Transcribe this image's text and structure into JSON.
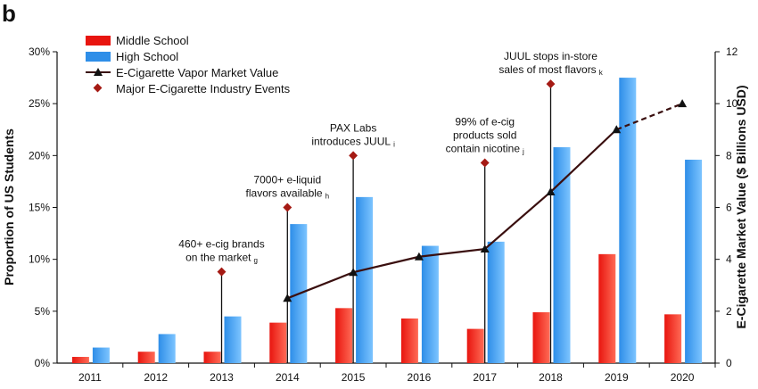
{
  "panel_label": "b",
  "chart_data": {
    "type": "bar",
    "categories": [
      "2011",
      "2012",
      "2013",
      "2014",
      "2015",
      "2016",
      "2017",
      "2018",
      "2019",
      "2020"
    ],
    "series": [
      {
        "name": "Middle School",
        "kind": "bar",
        "axis": "left",
        "values": [
          0.6,
          1.1,
          1.1,
          3.9,
          5.3,
          4.3,
          3.3,
          4.9,
          10.5,
          4.7
        ]
      },
      {
        "name": "High School",
        "kind": "bar",
        "axis": "left",
        "values": [
          1.5,
          2.8,
          4.5,
          13.4,
          16.0,
          11.3,
          11.7,
          20.8,
          27.5,
          19.6
        ]
      },
      {
        "name": "E-Cigarette Vapor Market Value",
        "kind": "line",
        "axis": "right",
        "x": [
          "2014",
          "2015",
          "2016",
          "2017",
          "2018",
          "2019",
          "2020"
        ],
        "values": [
          2.5,
          3.5,
          4.1,
          4.4,
          6.6,
          9.0,
          10.0
        ],
        "projected_from": "2019"
      },
      {
        "name": "Major E-Cigarette Industry Events",
        "kind": "event-marker",
        "axis": "left",
        "x": [
          "2013",
          "2014",
          "2015",
          "2017",
          "2018"
        ],
        "values": [
          8.8,
          15.0,
          20.0,
          19.3,
          26.9
        ]
      }
    ],
    "left_axis": {
      "label": "Proportion of US Students",
      "ylim": [
        0,
        30
      ],
      "ticks": [
        "0%",
        "5%",
        "10%",
        "15%",
        "20%",
        "25%",
        "30%"
      ]
    },
    "right_axis": {
      "label": "E-Cigarette Market Value ($ Billions USD)",
      "ylim": [
        0,
        12
      ],
      "ticks": [
        "0",
        "2",
        "4",
        "6",
        "8",
        "10",
        "12"
      ]
    },
    "events": [
      {
        "year": "2013",
        "lines": [
          "460+ e-cig brands",
          "on the market"
        ],
        "ref": "g"
      },
      {
        "year": "2014",
        "lines": [
          "7000+ e-liquid",
          "flavors available"
        ],
        "ref": "h"
      },
      {
        "year": "2015",
        "lines": [
          "PAX Labs",
          "introduces JUUL"
        ],
        "ref": "i"
      },
      {
        "year": "2017",
        "lines": [
          "99% of e-cig",
          "products sold",
          "contain nicotine"
        ],
        "ref": "j"
      },
      {
        "year": "2018",
        "lines": [
          "JUUL stops in-store",
          "sales of most flavors"
        ],
        "ref": "k"
      }
    ],
    "legend_position": "top-left",
    "grid": false,
    "colors": {
      "middle_school": "#e8150f",
      "high_school": "#2e8ee8",
      "market_line": "#3a0f0f",
      "event_marker": "#a51a14"
    }
  }
}
